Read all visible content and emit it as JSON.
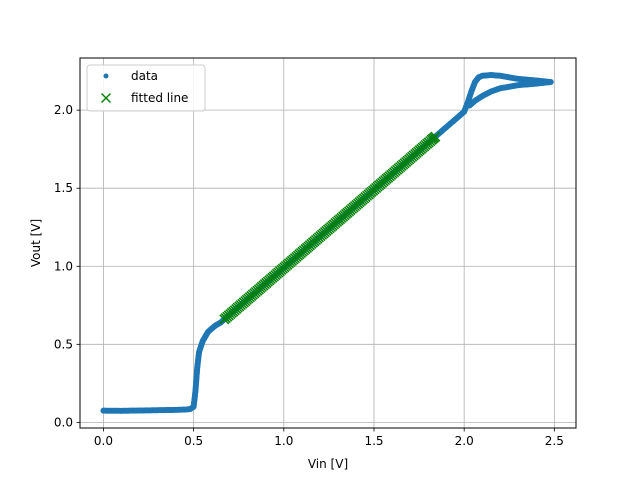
{
  "chart_data": {
    "type": "scatter",
    "xlabel": "Vin [V]",
    "ylabel": "Vout [V]",
    "xlim": [
      -0.13,
      2.62
    ],
    "ylim": [
      -0.036,
      2.334
    ],
    "grid": true,
    "legend_position": "top-left",
    "x_ticks": [
      {
        "value": 0.0,
        "label": "0.0"
      },
      {
        "value": 0.5,
        "label": "0.5"
      },
      {
        "value": 1.0,
        "label": "1.0"
      },
      {
        "value": 1.5,
        "label": "1.5"
      },
      {
        "value": 2.0,
        "label": "2.0"
      },
      {
        "value": 2.5,
        "label": "2.5"
      }
    ],
    "y_ticks": [
      {
        "value": 0.0,
        "label": "0.0"
      },
      {
        "value": 0.5,
        "label": "0.5"
      },
      {
        "value": 1.0,
        "label": "1.0"
      },
      {
        "value": 1.5,
        "label": "1.5"
      },
      {
        "value": 2.0,
        "label": "2.0"
      }
    ],
    "series": [
      {
        "name": "data",
        "marker": "dot",
        "color": "#1f77b4",
        "x": [
          0.0,
          0.1,
          0.2,
          0.3,
          0.4,
          0.45,
          0.48,
          0.5,
          0.51,
          0.52,
          0.53,
          0.55,
          0.58,
          0.62,
          0.65,
          0.7,
          0.8,
          0.9,
          1.0,
          1.1,
          1.2,
          1.3,
          1.4,
          1.5,
          1.6,
          1.7,
          1.8,
          1.9,
          2.0,
          2.02,
          2.04,
          2.06,
          2.08,
          2.1,
          2.15,
          2.2,
          2.3,
          2.4,
          2.48,
          2.4,
          2.3,
          2.2,
          2.15,
          2.1,
          2.06,
          2.03
        ],
        "y": [
          0.075,
          0.074,
          0.076,
          0.078,
          0.08,
          0.082,
          0.085,
          0.1,
          0.2,
          0.35,
          0.45,
          0.52,
          0.58,
          0.62,
          0.64,
          0.69,
          0.79,
          0.89,
          0.99,
          1.09,
          1.19,
          1.29,
          1.39,
          1.49,
          1.59,
          1.69,
          1.79,
          1.89,
          1.99,
          2.05,
          2.12,
          2.18,
          2.21,
          2.22,
          2.225,
          2.22,
          2.2,
          2.19,
          2.18,
          2.17,
          2.16,
          2.14,
          2.12,
          2.09,
          2.06,
          2.03
        ]
      },
      {
        "name": "fitted line",
        "marker": "x",
        "color": "#008000",
        "x": [
          0.67,
          0.72,
          0.77,
          0.82,
          0.87,
          0.92,
          0.97,
          1.02,
          1.07,
          1.12,
          1.17,
          1.22,
          1.27,
          1.32,
          1.37,
          1.42,
          1.47,
          1.52,
          1.57,
          1.62,
          1.67,
          1.72,
          1.77,
          1.82,
          1.84
        ],
        "y": [
          0.66,
          0.71,
          0.76,
          0.81,
          0.86,
          0.91,
          0.96,
          1.01,
          1.06,
          1.11,
          1.16,
          1.21,
          1.26,
          1.31,
          1.36,
          1.41,
          1.46,
          1.51,
          1.56,
          1.61,
          1.66,
          1.71,
          1.76,
          1.81,
          1.83
        ]
      }
    ]
  }
}
